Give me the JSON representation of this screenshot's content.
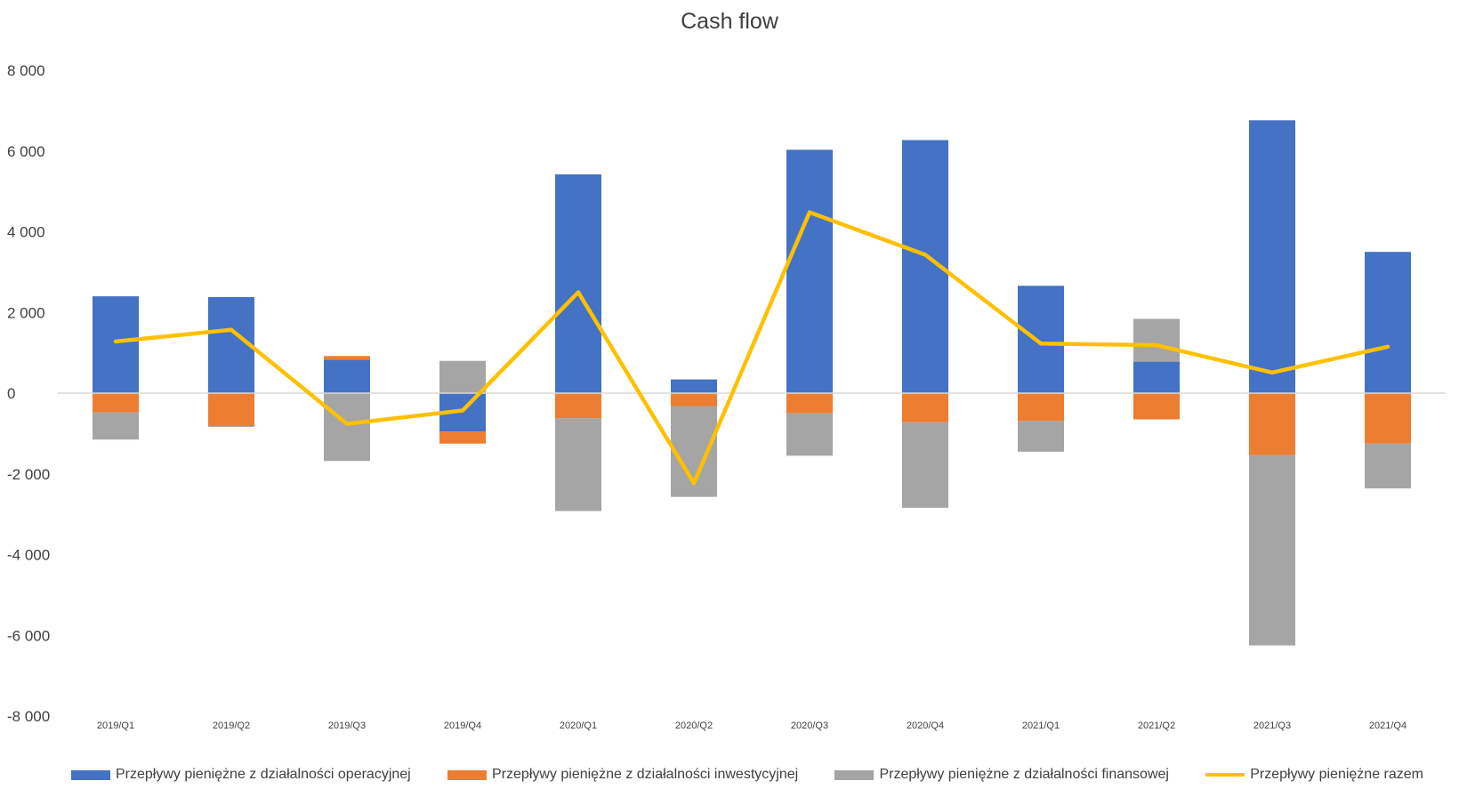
{
  "chart_data": {
    "type": "bar",
    "title": "Cash flow",
    "xlabel": "",
    "ylabel": "",
    "ylim": [
      -8000,
      8000
    ],
    "yticks": [
      8000,
      6000,
      4000,
      2000,
      0,
      -2000,
      -4000,
      -6000,
      -8000
    ],
    "ytick_labels": [
      "8 000",
      "6 000",
      "4 000",
      "2 000",
      "0",
      "-2 000",
      "-4 000",
      "-6 000",
      "-8 000"
    ],
    "grid": false,
    "legend_position": "bottom",
    "categories": [
      "2019/Q1",
      "2019/Q2",
      "2019/Q3",
      "2019/Q4",
      "2020/Q1",
      "2020/Q2",
      "2020/Q3",
      "2020/Q4",
      "2021/Q1",
      "2021/Q2",
      "2021/Q3",
      "2021/Q4"
    ],
    "series": [
      {
        "name": "Przepływy pieniężne z działalności operacyjnej",
        "kind": "bar",
        "color": "#4472C4",
        "values": [
          2400,
          2380,
          830,
          -950,
          5420,
          340,
          6030,
          6270,
          2660,
          780,
          6760,
          3500
        ]
      },
      {
        "name": "Przepływy pieniężne z działalności inwestycyjnej",
        "kind": "bar",
        "color": "#ED7D31",
        "values": [
          -480,
          -820,
          90,
          -300,
          -620,
          -320,
          -500,
          -720,
          -690,
          -650,
          -1530,
          -1250
        ]
      },
      {
        "name": "Przepływy pieniężne z działalności finansowej",
        "kind": "bar",
        "color": "#A5A5A5",
        "values": [
          -670,
          -20,
          -1680,
          800,
          -2300,
          -2250,
          -1050,
          -2120,
          -760,
          1060,
          -4720,
          -1110
        ]
      },
      {
        "name": "Przepływy pieniężne razem",
        "kind": "line",
        "color": "#FFC000",
        "values": [
          1280,
          1570,
          -760,
          -430,
          2500,
          -2230,
          4480,
          3430,
          1230,
          1190,
          510,
          1150
        ]
      }
    ]
  }
}
